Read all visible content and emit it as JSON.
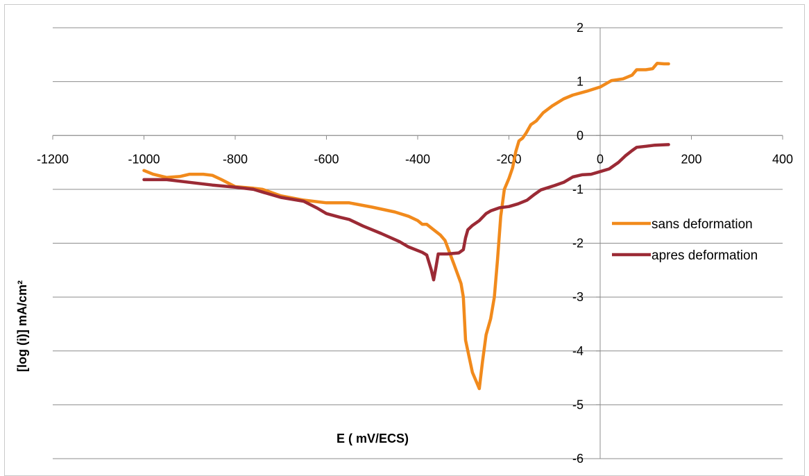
{
  "chart_data": {
    "type": "line",
    "title": "",
    "xlabel": "E ( mV/ECS)",
    "ylabel": "[log (i)] mA/cm²",
    "xlim": [
      -1200,
      400
    ],
    "ylim": [
      -6,
      2
    ],
    "xticks": [
      -1200,
      -1000,
      -800,
      -600,
      -400,
      -200,
      0,
      200,
      400
    ],
    "yticks": [
      2,
      1,
      0,
      -1,
      -2,
      -3,
      -4,
      -5,
      -6
    ],
    "grid": "horizontal major gridlines",
    "legend": "right",
    "series": [
      {
        "name": "sans deformation",
        "color": "#f18a1c",
        "points": [
          [
            -1000,
            -0.65
          ],
          [
            -980,
            -0.72
          ],
          [
            -950,
            -0.78
          ],
          [
            -920,
            -0.76
          ],
          [
            -900,
            -0.72
          ],
          [
            -870,
            -0.72
          ],
          [
            -850,
            -0.74
          ],
          [
            -830,
            -0.82
          ],
          [
            -800,
            -0.95
          ],
          [
            -760,
            -0.98
          ],
          [
            -740,
            -1.0
          ],
          [
            -700,
            -1.12
          ],
          [
            -650,
            -1.2
          ],
          [
            -600,
            -1.25
          ],
          [
            -550,
            -1.25
          ],
          [
            -500,
            -1.33
          ],
          [
            -450,
            -1.42
          ],
          [
            -420,
            -1.5
          ],
          [
            -400,
            -1.58
          ],
          [
            -390,
            -1.65
          ],
          [
            -380,
            -1.65
          ],
          [
            -365,
            -1.75
          ],
          [
            -350,
            -1.85
          ],
          [
            -340,
            -1.95
          ],
          [
            -320,
            -2.4
          ],
          [
            -305,
            -2.75
          ],
          [
            -300,
            -3.0
          ],
          [
            -295,
            -3.8
          ],
          [
            -285,
            -4.2
          ],
          [
            -280,
            -4.4
          ],
          [
            -270,
            -4.6
          ],
          [
            -265,
            -4.7
          ],
          [
            -258,
            -4.2
          ],
          [
            -250,
            -3.7
          ],
          [
            -240,
            -3.4
          ],
          [
            -232,
            -3.0
          ],
          [
            -225,
            -2.3
          ],
          [
            -218,
            -1.5
          ],
          [
            -210,
            -1.0
          ],
          [
            -200,
            -0.8
          ],
          [
            -192,
            -0.6
          ],
          [
            -185,
            -0.3
          ],
          [
            -178,
            -0.1
          ],
          [
            -170,
            -0.05
          ],
          [
            -162,
            0.05
          ],
          [
            -152,
            0.2
          ],
          [
            -140,
            0.27
          ],
          [
            -125,
            0.42
          ],
          [
            -105,
            0.55
          ],
          [
            -80,
            0.68
          ],
          [
            -60,
            0.75
          ],
          [
            -30,
            0.82
          ],
          [
            0,
            0.9
          ],
          [
            25,
            1.02
          ],
          [
            50,
            1.05
          ],
          [
            70,
            1.12
          ],
          [
            80,
            1.22
          ],
          [
            100,
            1.22
          ],
          [
            115,
            1.24
          ],
          [
            125,
            1.34
          ],
          [
            140,
            1.33
          ],
          [
            150,
            1.33
          ]
        ]
      },
      {
        "name": "apres deformation",
        "color": "#9b2a35",
        "points": [
          [
            -1000,
            -0.82
          ],
          [
            -950,
            -0.82
          ],
          [
            -900,
            -0.87
          ],
          [
            -850,
            -0.92
          ],
          [
            -800,
            -0.96
          ],
          [
            -760,
            -1.0
          ],
          [
            -740,
            -1.05
          ],
          [
            -700,
            -1.15
          ],
          [
            -650,
            -1.22
          ],
          [
            -620,
            -1.35
          ],
          [
            -600,
            -1.45
          ],
          [
            -570,
            -1.52
          ],
          [
            -550,
            -1.56
          ],
          [
            -520,
            -1.68
          ],
          [
            -480,
            -1.82
          ],
          [
            -440,
            -1.97
          ],
          [
            -420,
            -2.07
          ],
          [
            -390,
            -2.17
          ],
          [
            -380,
            -2.22
          ],
          [
            -370,
            -2.5
          ],
          [
            -365,
            -2.68
          ],
          [
            -360,
            -2.45
          ],
          [
            -355,
            -2.2
          ],
          [
            -335,
            -2.2
          ],
          [
            -310,
            -2.18
          ],
          [
            -300,
            -2.12
          ],
          [
            -295,
            -1.9
          ],
          [
            -290,
            -1.75
          ],
          [
            -280,
            -1.67
          ],
          [
            -265,
            -1.58
          ],
          [
            -250,
            -1.45
          ],
          [
            -240,
            -1.4
          ],
          [
            -220,
            -1.34
          ],
          [
            -200,
            -1.32
          ],
          [
            -180,
            -1.27
          ],
          [
            -160,
            -1.2
          ],
          [
            -145,
            -1.1
          ],
          [
            -130,
            -1.01
          ],
          [
            -100,
            -0.93
          ],
          [
            -80,
            -0.87
          ],
          [
            -60,
            -0.77
          ],
          [
            -40,
            -0.73
          ],
          [
            -20,
            -0.72
          ],
          [
            0,
            -0.67
          ],
          [
            20,
            -0.62
          ],
          [
            40,
            -0.5
          ],
          [
            55,
            -0.38
          ],
          [
            70,
            -0.28
          ],
          [
            80,
            -0.22
          ],
          [
            100,
            -0.2
          ],
          [
            120,
            -0.18
          ],
          [
            150,
            -0.17
          ]
        ]
      }
    ]
  }
}
